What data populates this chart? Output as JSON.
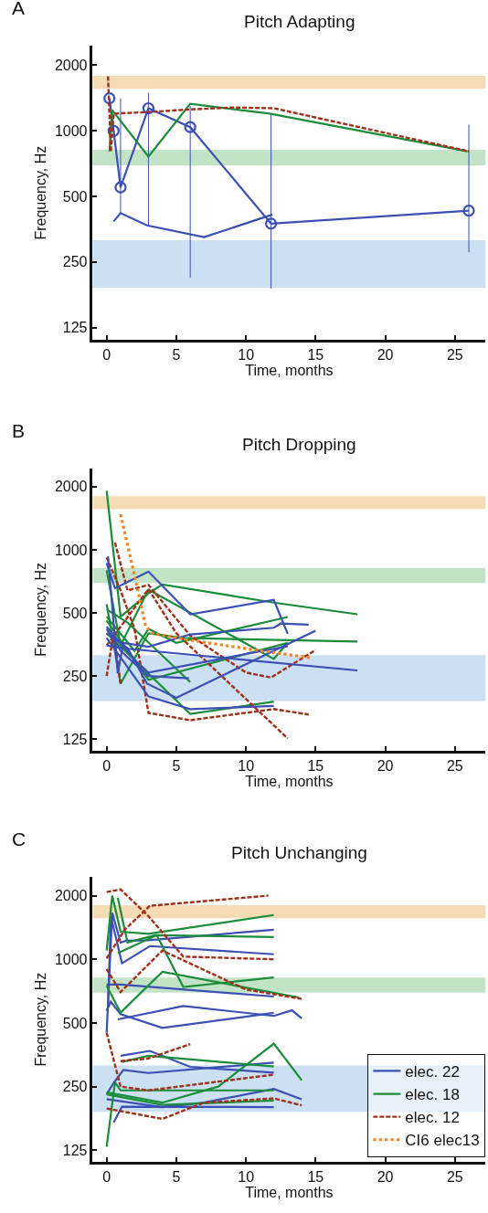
{
  "chart_data": [
    {
      "type": "line",
      "title": "Pitch Adapting",
      "xlabel": "Time, months",
      "ylabel": "Frequency, Hz",
      "annotations": [
        "A"
      ],
      "log": "y",
      "xlim": [
        -1,
        27.2
      ],
      "xticks": [
        0,
        5,
        10,
        15,
        20,
        25
      ],
      "ylim": [
        110,
        2450
      ],
      "yticks": [
        125,
        250,
        500,
        1000,
        2000
      ],
      "bands": [
        {
          "axis": "y",
          "from": 1560,
          "to": 1790,
          "color": "#f5dcb4"
        },
        {
          "axis": "y",
          "from": 695,
          "to": 819,
          "color": "#c3e3c6"
        },
        {
          "axis": "y",
          "from": 190,
          "to": 315,
          "color": "#cce0f4"
        }
      ],
      "series": [
        {
          "color": "#3b4fb4",
          "marker": "circle",
          "x": [
            0.2,
            0.5,
            1,
            3,
            6,
            11.8,
            26
          ],
          "values": [
            1410,
            1000,
            550,
            1270,
            1040,
            375,
            430
          ],
          "errors": [
            null,
            null,
            [
              420,
              1410
            ],
            [
              368,
              1497
            ],
            [
              212,
              1300
            ],
            [
              189,
              1194
            ],
            [
              277,
              1069
            ]
          ]
        },
        {
          "color": "#3b4fb4",
          "x": [
            0.5,
            1,
            2.9,
            7,
            11.9
          ],
          "values": [
            384,
            419,
            368,
            325,
            413
          ]
        },
        {
          "color": "#1a8c3a",
          "x": [
            0.2,
            0.4,
            3,
            6,
            11.7,
            25.9
          ],
          "values": [
            805,
            1245,
            761,
            1332,
            1200,
            805
          ]
        },
        {
          "color": "#a0301a",
          "line_style": "dashed",
          "x": [
            0.1,
            0.3,
            0.5,
            3,
            6,
            9,
            12,
            26
          ],
          "values": [
            1780,
            800,
            1200,
            1220,
            1254,
            1280,
            1270,
            805
          ]
        }
      ]
    },
    {
      "type": "line",
      "title": "Pitch Dropping",
      "xlabel": "Time, months",
      "ylabel": "Frequency, Hz",
      "annotations": [
        "B"
      ],
      "log": "y",
      "xlim": [
        -1,
        27.2
      ],
      "xticks": [
        0,
        5,
        10,
        15,
        20,
        25
      ],
      "ylim": [
        110,
        2450
      ],
      "yticks": [
        125,
        250,
        500,
        1000,
        2000
      ],
      "bands": [
        {
          "axis": "y",
          "from": 1565,
          "to": 1804,
          "color": "#f5dcb4"
        },
        {
          "axis": "y",
          "from": 695,
          "to": 819,
          "color": "#c3e3c6"
        },
        {
          "axis": "y",
          "from": 190,
          "to": 315,
          "color": "#cce0f4"
        }
      ],
      "series": [
        {
          "color": "#1a8c3a",
          "x": [
            0,
            1,
            3,
            4,
            12,
            18
          ],
          "values": [
            1910,
            480,
            620,
            684,
            560,
            493
          ]
        },
        {
          "color": "#1a8c3a",
          "x": [
            0,
            1,
            3,
            12,
            13
          ],
          "values": [
            800,
            350,
            646,
            302,
            360
          ]
        },
        {
          "color": "#1a8c3a",
          "x": [
            0,
            1,
            3,
            5.5,
            18
          ],
          "values": [
            550,
            230,
            400,
            380,
            365
          ]
        },
        {
          "color": "#1a8c3a",
          "x": [
            0,
            1.5,
            6
          ],
          "values": [
            520,
            450,
            234
          ]
        },
        {
          "color": "#1a8c3a",
          "x": [
            0,
            3,
            13
          ],
          "values": [
            460,
            240,
            360
          ]
        },
        {
          "color": "#1a8c3a",
          "x": [
            0,
            6,
            12
          ],
          "values": [
            400,
            165,
            189
          ]
        },
        {
          "color": "#1a8c3a",
          "x": [
            0,
            2,
            3,
            5,
            13
          ],
          "values": [
            480,
            330,
            420,
            360,
            478
          ]
        },
        {
          "color": "#a0301a",
          "line_style": "dashed",
          "x": [
            0,
            1,
            2,
            3,
            6,
            12,
            14.5
          ],
          "values": [
            920,
            640,
            420,
            167,
            154,
            174,
            164
          ]
        },
        {
          "color": "#a0301a",
          "line_style": "dashed",
          "x": [
            0.6,
            1.5,
            3,
            6,
            10,
            11.8,
            15
          ],
          "values": [
            1083,
            640,
            680,
            390,
            260,
            246,
            333
          ]
        },
        {
          "color": "#a0301a",
          "line_style": "dashed",
          "x": [
            0,
            3,
            5,
            13
          ],
          "values": [
            350,
            650,
            400,
            126
          ]
        },
        {
          "color": "#a0301a",
          "line_style": "dashed",
          "x": [
            0,
            0.5,
            1
          ],
          "values": [
            250,
            400,
            230
          ]
        },
        {
          "color": "#3b4fb4",
          "x": [
            0,
            0.6,
            3,
            6,
            12,
            13
          ],
          "values": [
            866,
            656,
            787,
            493,
            577,
            398
          ]
        },
        {
          "color": "#3b4fb4",
          "x": [
            0.1,
            0.8,
            1.2,
            3,
            6,
            12,
            12.5,
            14.5
          ],
          "values": [
            930,
            258,
            360,
            345,
            395,
            425,
            445,
            440
          ]
        },
        {
          "color": "#3b4fb4",
          "x": [
            0,
            1,
            18
          ],
          "values": [
            350,
            340,
            266
          ]
        },
        {
          "color": "#3b4fb4",
          "x": [
            0,
            1,
            3,
            5.9
          ],
          "values": [
            420,
            330,
            250,
            244
          ]
        },
        {
          "color": "#3b4fb4",
          "x": [
            0,
            1.5,
            2.9,
            5,
            15
          ],
          "values": [
            400,
            340,
            230,
            197,
            411
          ]
        },
        {
          "color": "#3b4fb4",
          "x": [
            0,
            3,
            6,
            12
          ],
          "values": [
            380,
            200,
            174,
            180
          ]
        },
        {
          "color": "#3b4fb4",
          "x": [
            0,
            2,
            3,
            13
          ],
          "values": [
            430,
            300,
            260,
            347
          ]
        },
        {
          "color": "#f7821e",
          "line_style": "dotted",
          "x": [
            1,
            1.9,
            2.8,
            3.3,
            6,
            10.5,
            14.6
          ],
          "values": [
            1476,
            807,
            433,
            399,
            371,
            334,
            306
          ]
        }
      ]
    },
    {
      "type": "line",
      "title": "Pitch Unchanging",
      "xlabel": "Time, months",
      "ylabel": "Frequency, Hz",
      "annotations": [
        "C"
      ],
      "log": "y",
      "xlim": [
        -1,
        27.2
      ],
      "xticks": [
        0,
        5,
        10,
        15,
        20,
        25
      ],
      "ylim": [
        110,
        2450
      ],
      "yticks": [
        125,
        250,
        500,
        1000,
        2000
      ],
      "legend": "bottom right",
      "bands": [
        {
          "axis": "y",
          "from": 1565,
          "to": 1804,
          "color": "#f5dcb4"
        },
        {
          "axis": "y",
          "from": 695,
          "to": 819,
          "color": "#c3e3c6"
        },
        {
          "axis": "y",
          "from": 190,
          "to": 315,
          "color": "#cce0f4"
        }
      ],
      "series": [
        {
          "name": "elec. 22",
          "color": "#3b4fb4",
          "x": [
            0,
            0.4,
            1,
            1.4,
            3,
            12
          ],
          "values": [
            450,
            1660,
            1200,
            1225,
            1230,
            1380
          ]
        },
        {
          "color": "#3b4fb4",
          "x": [
            0.1,
            0.3,
            1.1,
            3.1,
            12
          ],
          "values": [
            600,
            1600,
            958,
            1155,
            1056
          ]
        },
        {
          "color": "#3b4fb4",
          "x": [
            0,
            1,
            12
          ],
          "values": [
            760,
            760,
            667
          ]
        },
        {
          "color": "#3b4fb4",
          "x": [
            0,
            0.3,
            1,
            4,
            12
          ],
          "values": [
            570,
            630,
            550,
            474,
            558
          ]
        },
        {
          "color": "#3b4fb4",
          "x": [
            0.8,
            5.5,
            12,
            13.3,
            14
          ],
          "values": [
            520,
            601,
            540,
            574,
            526
          ]
        },
        {
          "color": "#3b4fb4",
          "x": [
            1,
            3.1,
            6,
            12
          ],
          "values": [
            350,
            369,
            310,
            291
          ]
        },
        {
          "color": "#3b4fb4",
          "x": [
            0,
            0.5,
            1.2,
            3,
            12
          ],
          "values": [
            230,
            260,
            300,
            290,
            325
          ]
        },
        {
          "color": "#3b4fb4",
          "x": [
            0,
            4,
            7,
            12,
            14
          ],
          "values": [
            218,
            200,
            210,
            244,
            218
          ]
        },
        {
          "color": "#3b4fb4",
          "x": [
            0.5,
            1.1,
            12
          ],
          "values": [
            169,
            201,
            200
          ]
        },
        {
          "name": "elec. 18",
          "color": "#1a8c3a",
          "x": [
            0,
            0.4,
            1,
            3,
            12
          ],
          "values": [
            1100,
            2000,
            1350,
            1320,
            1620
          ]
        },
        {
          "color": "#1a8c3a",
          "x": [
            0.8,
            1.5,
            3.5,
            12
          ],
          "values": [
            1950,
            1200,
            1300,
            1275
          ]
        },
        {
          "color": "#1a8c3a",
          "x": [
            0.8,
            3.6,
            5.5,
            12
          ],
          "values": [
            1070,
            1300,
            740,
            820
          ]
        },
        {
          "color": "#1a8c3a",
          "x": [
            0,
            1,
            4,
            13.8
          ],
          "values": [
            750,
            560,
            873,
            660
          ]
        },
        {
          "color": "#1a8c3a",
          "x": [
            1.1,
            3,
            12
          ],
          "values": [
            327,
            350,
            311
          ]
        },
        {
          "color": "#1a8c3a",
          "x": [
            0,
            0.6,
            1,
            12
          ],
          "values": [
            130,
            262,
            240,
            240
          ]
        },
        {
          "color": "#1a8c3a",
          "x": [
            0,
            4,
            8,
            12,
            14
          ],
          "values": [
            235,
            210,
            250,
            399,
            268
          ]
        },
        {
          "color": "#1a8c3a",
          "x": [
            0,
            4,
            12
          ],
          "values": [
            230,
            205,
            215
          ]
        },
        {
          "name": "elec. 12",
          "color": "#a0301a",
          "line_style": "dashed",
          "x": [
            0,
            1,
            3,
            5.5,
            12
          ],
          "values": [
            2080,
            2140,
            1600,
            1030,
            1000
          ]
        },
        {
          "color": "#a0301a",
          "line_style": "dashed",
          "x": [
            0,
            1.3,
            3.1,
            11.6
          ],
          "values": [
            1010,
            1380,
            1790,
            2000
          ]
        },
        {
          "color": "#a0301a",
          "line_style": "dashed",
          "x": [
            0,
            1,
            4,
            10,
            14
          ],
          "values": [
            900,
            700,
            1100,
            720,
            650
          ]
        },
        {
          "color": "#a0301a",
          "line_style": "dashed",
          "x": [
            0,
            1,
            3,
            12
          ],
          "values": [
            450,
            250,
            240,
            285
          ]
        },
        {
          "color": "#a0301a",
          "line_style": "dashed",
          "x": [
            1,
            3,
            6
          ],
          "values": [
            330,
            340,
            397
          ]
        },
        {
          "color": "#a0301a",
          "line_style": "dashed",
          "x": [
            0,
            4,
            7,
            12,
            14
          ],
          "values": [
            197,
            176,
            210,
            220,
            204
          ]
        },
        {
          "name": "CI6 elec13",
          "color": "#f7821e",
          "line_style": "dotted"
        }
      ]
    }
  ]
}
